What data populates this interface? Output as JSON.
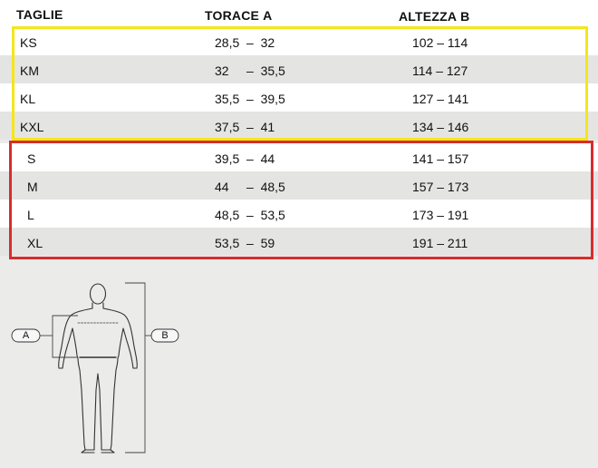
{
  "header": {
    "size_label": "TAGLIE",
    "chest_label": "TORACE",
    "chest_letter": "A",
    "height_label": "ALTEZZA",
    "height_letter": "B"
  },
  "yellow_group": [
    {
      "size": "KS",
      "chest": "28,5  –  32",
      "height": "102 – 114"
    },
    {
      "size": "KM",
      "chest": "32     –  35,5",
      "height": "114 – 127"
    },
    {
      "size": "KL",
      "chest": "35,5  –  39,5",
      "height": "127 – 141"
    },
    {
      "size": "KXL",
      "chest": "37,5  –  41",
      "height": "134 – 146"
    }
  ],
  "red_group": [
    {
      "size": "S",
      "chest": "39,5  –  44",
      "height": "141 – 157"
    },
    {
      "size": "M",
      "chest": "44     –  48,5",
      "height": "157 – 173"
    },
    {
      "size": "L",
      "chest": "48,5  –  53,5",
      "height": "173 – 191"
    },
    {
      "size": "XL",
      "chest": "53,5  –  59",
      "height": "191 – 211"
    }
  ],
  "diagram": {
    "label_a": "A",
    "label_b": "B"
  },
  "colors": {
    "yellow_frame": "#f4e61c",
    "red_frame": "#d72d2d"
  }
}
